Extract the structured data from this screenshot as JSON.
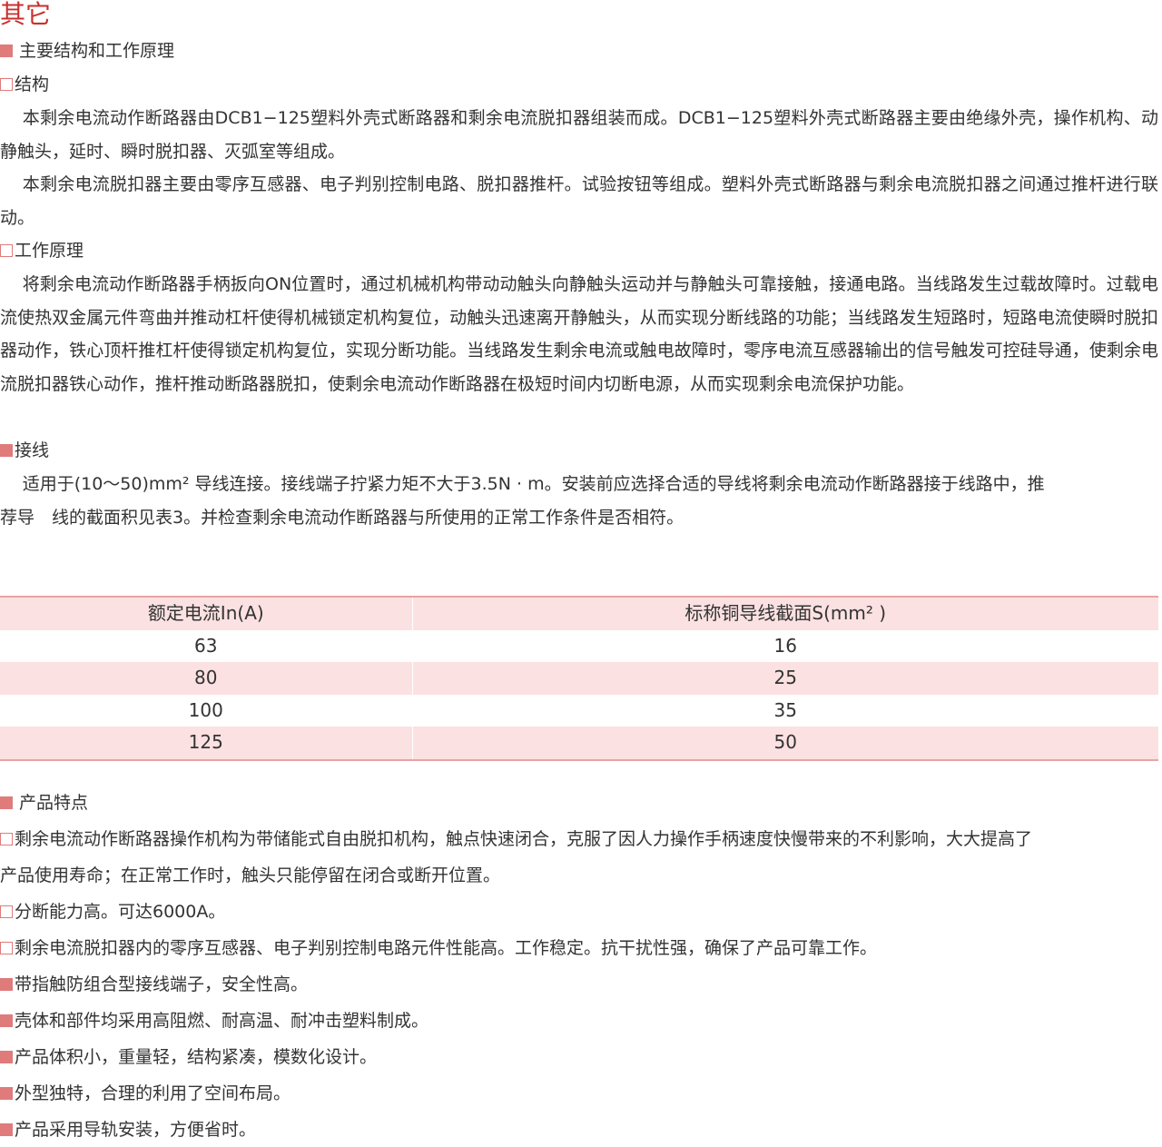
{
  "page_title": "其它",
  "section1": {
    "heading": "主要结构和工作原理",
    "structure": {
      "heading": "结构",
      "paragraphs": [
        "本剩余电流动作断路器由DCB1−125塑料外壳式断路器和剩余电流脱扣器组装而成。DCB1−125塑料外壳式断路器主要由绝缘外壳，操作机构、动静触头，延时、瞬时脱扣器、灭弧室等组成。",
        "本剩余电流脱扣器主要由零序互感器、电子判别控制电路、脱扣器推杆。试验按钮等组成。塑料外壳式断路器与剩余电流脱扣器之间通过推杆进行联动。"
      ]
    },
    "principle": {
      "heading": "工作原理",
      "paragraph": "将剩余电流动作断路器手柄扳向ON位置时，通过机械机构带动动触头向静触头运动并与静触头可靠接触，接通电路。当线路发生过载故障时。过载电流使热双金属元件弯曲并推动杠杆使得机械锁定机构复位，动触头迅速离开静触头，从而实现分断线路的功能；当线路发生短路时，短路电流使瞬时脱扣器动作，铁心顶杆推杠杆使得锁定机构复位，实现分断功能。当线路发生剩余电流或触电故障时，零序电流互感器输出的信号触发可控硅导通，使剩余电流脱扣器铁心动作，推杆推动断路器脱扣，使剩余电流动作断路器在极短时间内切断电源，从而实现剩余电流保护功能。"
    },
    "wiring": {
      "heading": "接线",
      "line1": "适用于(10～50)mm² 导线连接。接线端子拧紧力矩不大于3.5N · m。安装前应选择合适的导线将剩余电流动作断路器接于线路中，推",
      "line2": "荐导　线的截面积见表3。并检查剩余电流动作断路器与所使用的正常工作条件是否相符。"
    }
  },
  "table": {
    "headers": [
      "额定电流In(A)",
      "标称铜导线截面S(mm² )"
    ],
    "rows": [
      [
        "63",
        "16"
      ],
      [
        "80",
        "25"
      ],
      [
        "100",
        "35"
      ],
      [
        "125",
        "50"
      ]
    ],
    "accent_color": "#fbe1e1",
    "border_color": "#e9a3a3"
  },
  "features": {
    "heading": "产品特点",
    "items": [
      {
        "marker": "open",
        "lines": [
          "剩余电流动作断路器操作机构为带储能式自由脱扣机构，触点快速闭合，克服了因人力操作手柄速度快慢带来的不利影响，大大提高了",
          "产品使用寿命；在正常工作时，触头只能停留在闭合或断开位置。"
        ]
      },
      {
        "marker": "open",
        "lines": [
          "分断能力高。可达6000A。"
        ]
      },
      {
        "marker": "open",
        "lines": [
          "剩余电流脱扣器内的零序互感器、电子判别控制电路元件性能高。工作稳定。抗干扰性强，确保了产品可靠工作。"
        ]
      },
      {
        "marker": "filled",
        "lines": [
          "带指触防组合型接线端子，安全性高。"
        ]
      },
      {
        "marker": "filled",
        "lines": [
          "壳体和部件均采用高阻燃、耐高温、耐冲击塑料制成。"
        ]
      },
      {
        "marker": "filled",
        "lines": [
          "产品体积小，重量轻，结构紧凑，模数化设计。"
        ]
      },
      {
        "marker": "filled",
        "lines": [
          "外型独特，合理的利用了空间布局。"
        ]
      },
      {
        "marker": "filled",
        "lines": [
          "产品采用导轨安装，方便省时。"
        ]
      }
    ]
  },
  "colors": {
    "title": "#c9302c",
    "marker": "#e07b7b",
    "text": "#333333"
  }
}
